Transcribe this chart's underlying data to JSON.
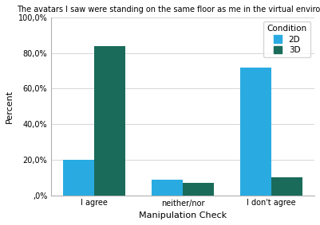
{
  "title": "The avatars I saw were standing on the same floor as me in the virtual environment.",
  "categories": [
    "I agree",
    "neither/nor",
    "I don't agree"
  ],
  "values_2D": [
    20.0,
    9.0,
    72.0
  ],
  "values_3D": [
    84.0,
    7.0,
    10.0
  ],
  "color_2D": "#29ABE2",
  "color_3D": "#1A6B5A",
  "ylabel": "Percent",
  "xlabel": "Manipulation Check",
  "ylim": [
    0,
    100
  ],
  "yticks": [
    0,
    20,
    40,
    60,
    80,
    100
  ],
  "ytick_labels": [
    ",0%",
    "20,0%",
    "40,0%",
    "60,0%",
    "80,0%",
    "100,0%"
  ],
  "legend_title": "Condition",
  "legend_labels": [
    "2D",
    "3D"
  ],
  "bar_width": 0.35,
  "title_fontsize": 7.0,
  "axis_label_fontsize": 8,
  "tick_fontsize": 7,
  "legend_fontsize": 7.5,
  "background_color": "#ffffff",
  "plot_bg_color": "#ffffff"
}
